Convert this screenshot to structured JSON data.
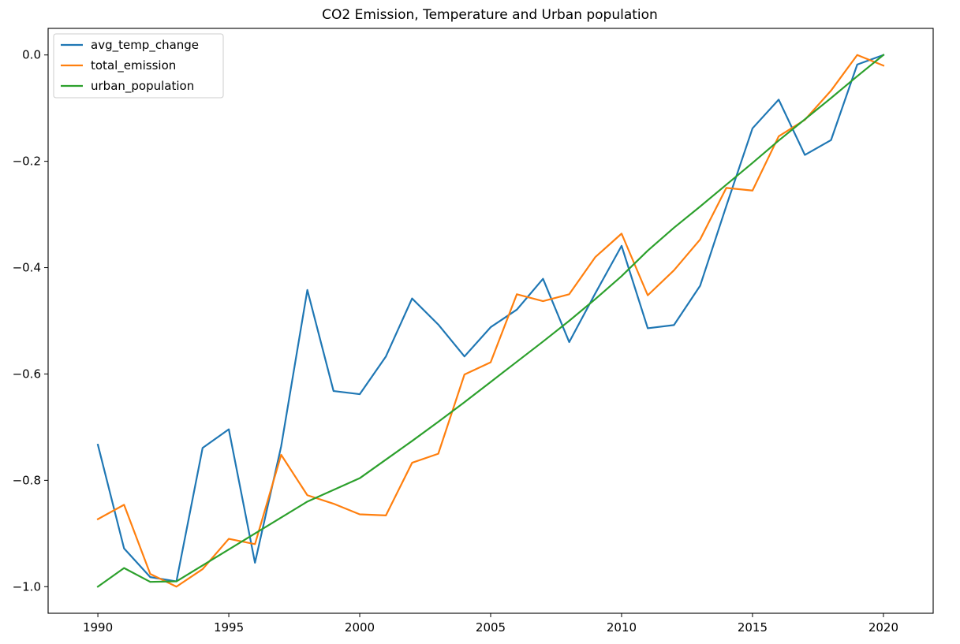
{
  "chart_data": {
    "type": "line",
    "title": "CO2 Emission, Temperature and Urban population",
    "xlabel": "",
    "ylabel": "",
    "xlim": [
      1988.1,
      2021.9
    ],
    "ylim": [
      -1.05,
      0.05
    ],
    "x_ticks": [
      1990,
      1995,
      2000,
      2005,
      2010,
      2015,
      2020
    ],
    "y_ticks": [
      0.0,
      -0.2,
      -0.4,
      -0.6,
      -0.8,
      -1.0
    ],
    "y_tick_labels": [
      "0.0",
      "−0.2",
      "−0.4",
      "−0.6",
      "−0.8",
      "−1.0"
    ],
    "grid": false,
    "legend_position": "top-left",
    "x": [
      1990,
      1991,
      1992,
      1993,
      1994,
      1995,
      1996,
      1997,
      1998,
      1999,
      2000,
      2001,
      2002,
      2003,
      2004,
      2005,
      2006,
      2007,
      2008,
      2009,
      2010,
      2011,
      2012,
      2013,
      2014,
      2015,
      2016,
      2017,
      2018,
      2019,
      2020
    ],
    "series": [
      {
        "name": "avg_temp_change",
        "color": "#1f77b4",
        "values": [
          -0.733,
          -0.928,
          -0.982,
          -0.99,
          -0.739,
          -0.704,
          -0.955,
          -0.736,
          -0.442,
          -0.632,
          -0.638,
          -0.567,
          -0.458,
          -0.507,
          -0.567,
          -0.512,
          -0.479,
          -0.421,
          -0.54,
          -0.448,
          -0.359,
          -0.514,
          -0.508,
          -0.434,
          -0.284,
          -0.138,
          -0.084,
          -0.188,
          -0.16,
          -0.018,
          0.0
        ]
      },
      {
        "name": "total_emission",
        "color": "#ff7f0e",
        "values": [
          -0.873,
          -0.846,
          -0.976,
          -1.0,
          -0.967,
          -0.91,
          -0.92,
          -0.752,
          -0.828,
          -0.844,
          -0.864,
          -0.866,
          -0.767,
          -0.75,
          -0.601,
          -0.578,
          -0.45,
          -0.463,
          -0.45,
          -0.38,
          -0.336,
          -0.452,
          -0.405,
          -0.347,
          -0.25,
          -0.255,
          -0.153,
          -0.122,
          -0.067,
          0.0,
          -0.02
        ]
      },
      {
        "name": "urban_population",
        "color": "#2ca02c",
        "values": [
          -1.0,
          -0.965,
          -0.991,
          -0.99,
          -0.96,
          -0.93,
          -0.9,
          -0.87,
          -0.84,
          -0.818,
          -0.796,
          -0.761,
          -0.726,
          -0.69,
          -0.653,
          -0.615,
          -0.577,
          -0.539,
          -0.5,
          -0.459,
          -0.416,
          -0.368,
          -0.325,
          -0.285,
          -0.244,
          -0.203,
          -0.161,
          -0.121,
          -0.081,
          -0.04,
          0.0
        ]
      }
    ]
  }
}
